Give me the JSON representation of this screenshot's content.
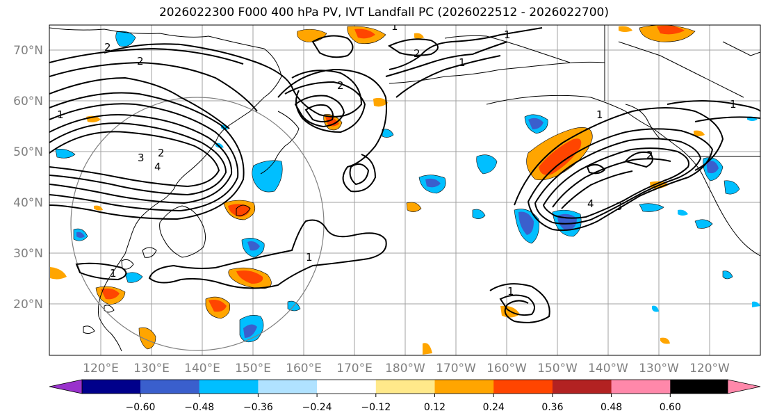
{
  "title": "2026022300 F000 400 hPa PV, IVT Landfall PC (2026022512 - 2026022700)",
  "lat_labels": [
    "70°N",
    "60°N",
    "50°N",
    "40°N",
    "30°N",
    "20°N"
  ],
  "lon_labels": [
    "120°E",
    "130°E",
    "140°E",
    "150°E",
    "160°E",
    "170°E",
    "180°W",
    "170°W",
    "160°W",
    "150°W",
    "140°W",
    "130°W",
    "120°W"
  ],
  "contour_labels": [
    "1",
    "2",
    "3",
    "4"
  ],
  "colorbar": {
    "ticks": [
      "−0.60",
      "−0.48",
      "−0.36",
      "−0.24",
      "−0.12",
      "0.12",
      "0.24",
      "0.36",
      "0.48",
      "0.60"
    ],
    "colors": [
      "#9932cc",
      "#00008b",
      "#3a5fcd",
      "#00bfff",
      "#b0e2ff",
      "#ffffff",
      "#ffe98a",
      "#ffa500",
      "#ff4500",
      "#b22222",
      "#ff88aa"
    ]
  },
  "colors": {
    "blue_light": "#00bfff",
    "blue_mid": "#3a5fcd",
    "orange": "#ffa500",
    "red": "#ff4500",
    "yellow": "#ffe98a",
    "grid": "#a0a0a0"
  }
}
